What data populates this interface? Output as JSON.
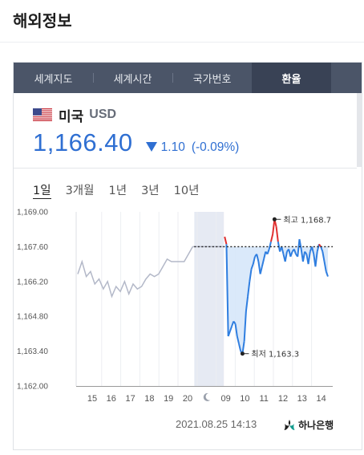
{
  "section": {
    "title": "해외정보"
  },
  "tabs": [
    {
      "label": "세계지도",
      "active": false
    },
    {
      "label": "세계시간",
      "active": false
    },
    {
      "label": "국가번호",
      "active": false
    },
    {
      "label": "환율",
      "active": true
    }
  ],
  "currency": {
    "flag_icon": "us-flag-icon",
    "country": "미국",
    "code": "USD",
    "rate": "1,166.40",
    "change": "1.10",
    "change_pct": "(-0.09%)",
    "direction": "down",
    "color": "#2f6fd2"
  },
  "periods": [
    "1일",
    "3개월",
    "1년",
    "3년",
    "10년"
  ],
  "active_period": "1일",
  "chart_data": {
    "type": "line",
    "y_ticks": [
      "1,169.00",
      "1,167.60",
      "1,166.20",
      "1,164.80",
      "1,163.40",
      "1,162.00"
    ],
    "ylim": [
      1162.0,
      1169.0
    ],
    "x_ticks": [
      "15",
      "16",
      "17",
      "18",
      "19",
      "20",
      "moon-icon",
      "09",
      "10",
      "11",
      "12",
      "13",
      "14"
    ],
    "reference_value": 1167.6,
    "max_label": "최고 1,168.7",
    "max_value": 1168.7,
    "min_label": "최저 1,163.3",
    "min_value": 1163.3,
    "colors": {
      "history": "#b3b8c8",
      "intraday": "#2f7ee0",
      "above_reference": "#e03030",
      "fill": "#d6e7fa",
      "night_band": "#e6eaf3"
    },
    "history_series": [
      1166.5,
      1167.0,
      1166.4,
      1166.6,
      1166.1,
      1166.3,
      1165.9,
      1166.2,
      1165.6,
      1166.0,
      1165.8,
      1166.2,
      1165.7,
      1166.1,
      1165.9,
      1166.0,
      1166.3,
      1166.5,
      1166.4,
      1166.5,
      1166.8,
      1167.1,
      1167.0,
      1167.0,
      1167.0,
      1167.0,
      1167.3,
      1167.6
    ],
    "intraday_series": [
      1168.0,
      1167.7,
      1164.0,
      1164.2,
      1164.4,
      1164.6,
      1164.5,
      1164.0,
      1163.7,
      1163.4,
      1163.3,
      1163.8,
      1165.0,
      1165.6,
      1166.2,
      1166.7,
      1166.9,
      1167.2,
      1167.3,
      1167.0,
      1166.5,
      1166.8,
      1167.1,
      1167.4,
      1167.3,
      1167.5,
      1167.8,
      1168.1,
      1168.7,
      1168.4,
      1167.8,
      1167.4,
      1167.6,
      1167.3,
      1167.0,
      1167.4,
      1167.5,
      1167.2,
      1167.4,
      1167.5,
      1167.3,
      1167.2,
      1167.9,
      1167.5,
      1167.0,
      1167.4,
      1167.3,
      1166.9,
      1167.4,
      1167.6,
      1167.3,
      1166.8,
      1167.4,
      1167.7,
      1167.6,
      1167.4,
      1167.0,
      1166.6,
      1166.4
    ]
  },
  "footer": {
    "timestamp": "2021.08.25 14:13",
    "bank_icon": "hana-bank-logo-icon",
    "bank_name": "하나은행"
  }
}
